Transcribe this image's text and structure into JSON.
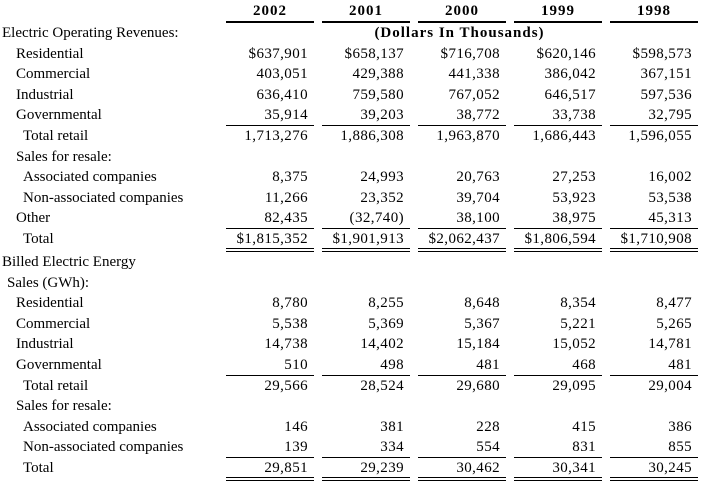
{
  "page": {
    "colors": {
      "background": "#ffffff",
      "text": "#000000",
      "rules": "#000000"
    }
  },
  "table": {
    "columns": [
      "2002",
      "2001",
      "2000",
      "1999",
      "1998"
    ],
    "units_note": "(Dollars In Thousands)",
    "sections": [
      {
        "title": "Electric Operating Revenues:",
        "rows": [
          {
            "label": "Residential",
            "indent": 1,
            "rule": "none",
            "values": [
              "$637,901",
              "$658,137",
              "$716,708",
              "$620,146",
              "$598,573"
            ]
          },
          {
            "label": "Commercial",
            "indent": 1,
            "rule": "none",
            "values": [
              "403,051",
              "429,388",
              "441,338",
              "386,042",
              "367,151"
            ]
          },
          {
            "label": "Industrial",
            "indent": 1,
            "rule": "none",
            "values": [
              "636,410",
              "759,580",
              "767,052",
              "646,517",
              "597,536"
            ]
          },
          {
            "label": "Governmental",
            "indent": 1,
            "rule": "single",
            "values": [
              "35,914",
              "39,203",
              "38,772",
              "33,738",
              "32,795"
            ]
          },
          {
            "label": "Total retail",
            "indent": 2,
            "rule": "none",
            "values": [
              "1,713,276",
              "1,886,308",
              "1,963,870",
              "1,686,443",
              "1,596,055"
            ]
          },
          {
            "label": "Sales for resale:",
            "indent": 1,
            "rule": "none",
            "values": [
              "",
              "",
              "",
              "",
              ""
            ]
          },
          {
            "label": "Associated companies",
            "indent": 2,
            "rule": "none",
            "values": [
              "8,375",
              "24,993",
              "20,763",
              "27,253",
              "16,002"
            ]
          },
          {
            "label": "Non-associated companies",
            "indent": 2,
            "rule": "none",
            "values": [
              "11,266",
              "23,352",
              "39,704",
              "53,923",
              "53,538"
            ]
          },
          {
            "label": "Other",
            "indent": 1,
            "rule": "single",
            "values": [
              "82,435",
              "(32,740)",
              "38,100",
              "38,975",
              "45,313"
            ]
          },
          {
            "label": "Total",
            "indent": 2,
            "rule": "double",
            "values": [
              "$1,815,352",
              "$1,901,913",
              "$2,062,437",
              "$1,806,594",
              "$1,710,908"
            ]
          }
        ]
      },
      {
        "title_line1": "Billed Electric Energy",
        "title_line2": "Sales (GWh):",
        "rows": [
          {
            "label": "Residential",
            "indent": 1,
            "rule": "none",
            "values": [
              "8,780",
              "8,255",
              "8,648",
              "8,354",
              "8,477"
            ]
          },
          {
            "label": "Commercial",
            "indent": 1,
            "rule": "none",
            "values": [
              "5,538",
              "5,369",
              "5,367",
              "5,221",
              "5,265"
            ]
          },
          {
            "label": "Industrial",
            "indent": 1,
            "rule": "none",
            "values": [
              "14,738",
              "14,402",
              "15,184",
              "15,052",
              "14,781"
            ]
          },
          {
            "label": "Governmental",
            "indent": 1,
            "rule": "single",
            "values": [
              "510",
              "498",
              "481",
              "468",
              "481"
            ]
          },
          {
            "label": "Total retail",
            "indent": 2,
            "rule": "none",
            "values": [
              "29,566",
              "28,524",
              "29,680",
              "29,095",
              "29,004"
            ]
          },
          {
            "label": "Sales for resale:",
            "indent": 1,
            "rule": "none",
            "values": [
              "",
              "",
              "",
              "",
              ""
            ]
          },
          {
            "label": "Associated companies",
            "indent": 2,
            "rule": "none",
            "values": [
              "146",
              "381",
              "228",
              "415",
              "386"
            ]
          },
          {
            "label": "Non-associated companies",
            "indent": 2,
            "rule": "single",
            "values": [
              "139",
              "334",
              "554",
              "831",
              "855"
            ]
          },
          {
            "label": "Total",
            "indent": 2,
            "rule": "double",
            "values": [
              "29,851",
              "29,239",
              "30,462",
              "30,341",
              "30,245"
            ]
          }
        ]
      }
    ]
  }
}
